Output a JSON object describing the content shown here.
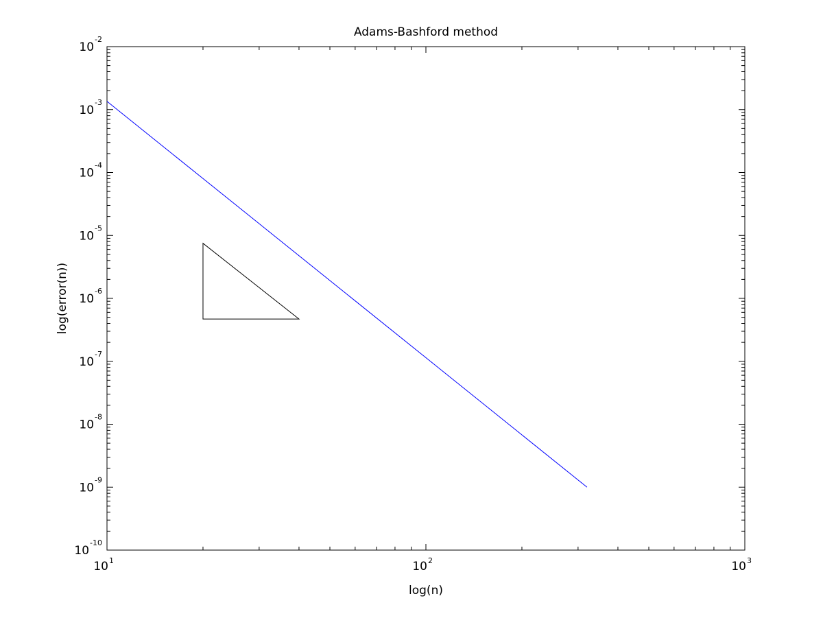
{
  "chart_data": {
    "type": "line",
    "title": "Adams-Bashford method",
    "xlabel": "log(n)",
    "ylabel": "log(error(n))",
    "x_scale": "log",
    "y_scale": "log",
    "xlim": [
      10,
      1000
    ],
    "ylim": [
      1e-10,
      0.01
    ],
    "x_tick_labels": [
      {
        "value": 10,
        "base": "10",
        "exp": "1"
      },
      {
        "value": 100,
        "base": "10",
        "exp": "2"
      },
      {
        "value": 1000,
        "base": "10",
        "exp": "3"
      }
    ],
    "y_tick_labels": [
      {
        "value": 1e-10,
        "base": "10",
        "exp": "-10"
      },
      {
        "value": 1e-09,
        "base": "10",
        "exp": "-9"
      },
      {
        "value": 1e-08,
        "base": "10",
        "exp": "-8"
      },
      {
        "value": 1e-07,
        "base": "10",
        "exp": "-7"
      },
      {
        "value": 1e-06,
        "base": "10",
        "exp": "-6"
      },
      {
        "value": 1e-05,
        "base": "10",
        "exp": "-5"
      },
      {
        "value": 0.0001,
        "base": "10",
        "exp": "-4"
      },
      {
        "value": 0.001,
        "base": "10",
        "exp": "-3"
      },
      {
        "value": 0.01,
        "base": "10",
        "exp": "-2"
      }
    ],
    "grid": false,
    "series": [
      {
        "color": "#0000ff",
        "x": [
          10,
          320
        ],
        "y": [
          0.00135,
          1e-09
        ]
      }
    ],
    "annotations": [
      {
        "type": "slope-triangle",
        "color": "#000000",
        "vertices": [
          [
            20,
            7.5e-06
          ],
          [
            20,
            4.7e-07
          ],
          [
            40,
            4.7e-07
          ]
        ]
      }
    ]
  }
}
